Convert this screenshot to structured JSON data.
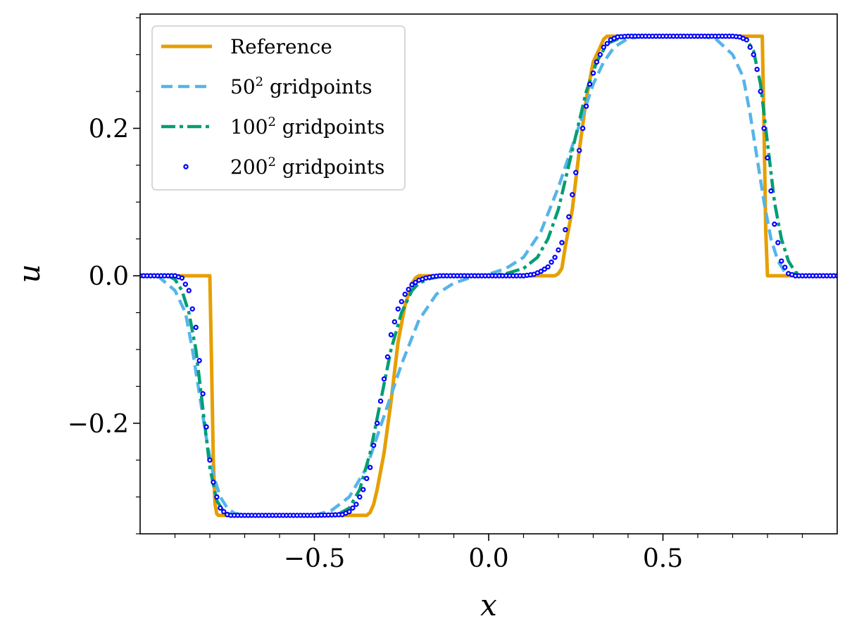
{
  "chart_data": {
    "type": "line",
    "title": "",
    "xlabel": "x",
    "ylabel": "u",
    "xlim": [
      -1.0,
      1.0
    ],
    "ylim": [
      -0.35,
      0.355
    ],
    "xticks": [
      -0.5,
      0.0,
      0.5
    ],
    "xtick_labels": [
      "−0.5",
      "0.0",
      "0.5"
    ],
    "yticks": [
      -0.2,
      0.0,
      0.2
    ],
    "ytick_labels": [
      "−0.2",
      "0.0",
      "0.2"
    ],
    "x_minor_step": 0.1,
    "y_minor_step": 0.05,
    "grid": false,
    "legend_position": "top-left",
    "series": [
      {
        "name": "Reference",
        "legend_base": "Reference",
        "legend_sup": "",
        "legend_suffix": "",
        "style": "solid",
        "color": "#E69F00",
        "x": [
          -1.0,
          -0.8,
          -0.795,
          -0.79,
          -0.785,
          -0.78,
          -0.775,
          -0.77,
          -0.35,
          -0.34,
          -0.33,
          -0.32,
          -0.3,
          -0.28,
          -0.26,
          -0.24,
          -0.22,
          -0.21,
          -0.2,
          -0.19,
          0.19,
          0.2,
          0.21,
          0.22,
          0.24,
          0.26,
          0.28,
          0.3,
          0.32,
          0.33,
          0.34,
          0.35,
          0.785,
          0.79,
          0.795,
          0.8,
          1.0
        ],
        "y": [
          0.0,
          0.0,
          -0.12,
          -0.25,
          -0.31,
          -0.323,
          -0.325,
          -0.325,
          -0.325,
          -0.321,
          -0.31,
          -0.29,
          -0.24,
          -0.17,
          -0.09,
          -0.04,
          -0.01,
          -0.003,
          0.0,
          0.0,
          0.0,
          0.003,
          0.01,
          0.04,
          0.09,
          0.17,
          0.24,
          0.29,
          0.31,
          0.321,
          0.325,
          0.325,
          0.325,
          0.2,
          0.06,
          0.0,
          0.0
        ]
      },
      {
        "name": "50^2 gridpoints",
        "legend_base": "50",
        "legend_sup": "2",
        "legend_suffix": " gridpoints",
        "style": "dashed",
        "color": "#56B4E9",
        "x": [
          -1.0,
          -0.95,
          -0.9,
          -0.87,
          -0.85,
          -0.83,
          -0.81,
          -0.79,
          -0.77,
          -0.75,
          -0.73,
          -0.7,
          -0.65,
          -0.5,
          -0.45,
          -0.4,
          -0.35,
          -0.3,
          -0.25,
          -0.2,
          -0.15,
          -0.1,
          -0.05,
          0.0,
          0.05,
          0.1,
          0.15,
          0.2,
          0.25,
          0.3,
          0.33,
          0.36,
          0.4,
          0.45,
          0.5,
          0.6,
          0.65,
          0.7,
          0.73,
          0.75,
          0.77,
          0.79,
          0.81,
          0.83,
          0.85,
          0.87,
          0.9,
          0.95,
          1.0
        ],
        "y": [
          0.0,
          0.0,
          -0.02,
          -0.05,
          -0.1,
          -0.16,
          -0.22,
          -0.27,
          -0.3,
          -0.315,
          -0.322,
          -0.325,
          -0.325,
          -0.325,
          -0.318,
          -0.3,
          -0.26,
          -0.19,
          -0.12,
          -0.06,
          -0.025,
          -0.01,
          -0.002,
          0.002,
          0.01,
          0.025,
          0.06,
          0.12,
          0.19,
          0.26,
          0.29,
          0.31,
          0.322,
          0.325,
          0.325,
          0.325,
          0.322,
          0.3,
          0.27,
          0.22,
          0.16,
          0.1,
          0.05,
          0.02,
          0.005,
          0.0,
          0.0,
          0.0,
          0.0
        ]
      },
      {
        "name": "100^2 gridpoints",
        "legend_base": "100",
        "legend_sup": "2",
        "legend_suffix": " gridpoints",
        "style": "dashdot",
        "color": "#009E73",
        "x": [
          -1.0,
          -0.92,
          -0.9,
          -0.88,
          -0.86,
          -0.84,
          -0.82,
          -0.8,
          -0.78,
          -0.76,
          -0.74,
          -0.72,
          -0.5,
          -0.43,
          -0.4,
          -0.37,
          -0.34,
          -0.31,
          -0.28,
          -0.25,
          -0.22,
          -0.2,
          -0.17,
          -0.14,
          -0.1,
          -0.05,
          0.0,
          0.05,
          0.1,
          0.14,
          0.17,
          0.2,
          0.22,
          0.25,
          0.28,
          0.31,
          0.34,
          0.37,
          0.4,
          0.43,
          0.5,
          0.72,
          0.74,
          0.76,
          0.78,
          0.8,
          0.82,
          0.84,
          0.86,
          0.88,
          0.9,
          0.92,
          1.0
        ],
        "y": [
          0.0,
          0.0,
          -0.005,
          -0.02,
          -0.05,
          -0.1,
          -0.18,
          -0.26,
          -0.305,
          -0.32,
          -0.324,
          -0.325,
          -0.325,
          -0.323,
          -0.315,
          -0.29,
          -0.24,
          -0.17,
          -0.1,
          -0.05,
          -0.02,
          -0.01,
          -0.004,
          -0.001,
          0.0,
          0.0,
          0.0,
          0.003,
          0.01,
          0.025,
          0.05,
          0.09,
          0.13,
          0.19,
          0.25,
          0.29,
          0.315,
          0.321,
          0.325,
          0.325,
          0.325,
          0.325,
          0.321,
          0.305,
          0.26,
          0.18,
          0.1,
          0.05,
          0.02,
          0.005,
          0.0,
          0.0,
          0.0
        ]
      },
      {
        "name": "200^2 gridpoints",
        "legend_base": "200",
        "legend_sup": "2",
        "legend_suffix": " gridpoints",
        "style": "dotted-markers",
        "color": "#0000FF",
        "x": [
          -1.0,
          -0.95,
          -0.9,
          -0.88,
          -0.86,
          -0.84,
          -0.82,
          -0.8,
          -0.79,
          -0.78,
          -0.77,
          -0.76,
          -0.75,
          -0.74,
          -0.72,
          -0.7,
          -0.5,
          -0.42,
          -0.4,
          -0.38,
          -0.36,
          -0.34,
          -0.32,
          -0.3,
          -0.28,
          -0.26,
          -0.24,
          -0.22,
          -0.2,
          -0.18,
          -0.16,
          -0.14,
          -0.12,
          -0.1,
          -0.05,
          0.0,
          0.05,
          0.1,
          0.13,
          0.15,
          0.17,
          0.19,
          0.21,
          0.23,
          0.25,
          0.27,
          0.29,
          0.31,
          0.33,
          0.35,
          0.37,
          0.4,
          0.5,
          0.7,
          0.72,
          0.74,
          0.76,
          0.77,
          0.78,
          0.79,
          0.8,
          0.82,
          0.84,
          0.86,
          0.88,
          0.9,
          0.95,
          1.0
        ],
        "y": [
          0.0,
          0.0,
          0.0,
          -0.003,
          -0.02,
          -0.07,
          -0.16,
          -0.25,
          -0.28,
          -0.3,
          -0.315,
          -0.32,
          -0.324,
          -0.325,
          -0.325,
          -0.325,
          -0.325,
          -0.324,
          -0.32,
          -0.31,
          -0.29,
          -0.26,
          -0.2,
          -0.14,
          -0.08,
          -0.045,
          -0.025,
          -0.012,
          -0.006,
          -0.003,
          -0.001,
          0.0,
          0.0,
          0.0,
          0.0,
          0.0,
          0.0,
          0.0,
          0.002,
          0.006,
          0.012,
          0.025,
          0.045,
          0.08,
          0.14,
          0.2,
          0.26,
          0.29,
          0.31,
          0.32,
          0.324,
          0.325,
          0.325,
          0.325,
          0.324,
          0.32,
          0.3,
          0.28,
          0.25,
          0.2,
          0.16,
          0.07,
          0.02,
          0.003,
          0.0,
          0.0,
          0.0,
          0.0
        ]
      }
    ]
  }
}
